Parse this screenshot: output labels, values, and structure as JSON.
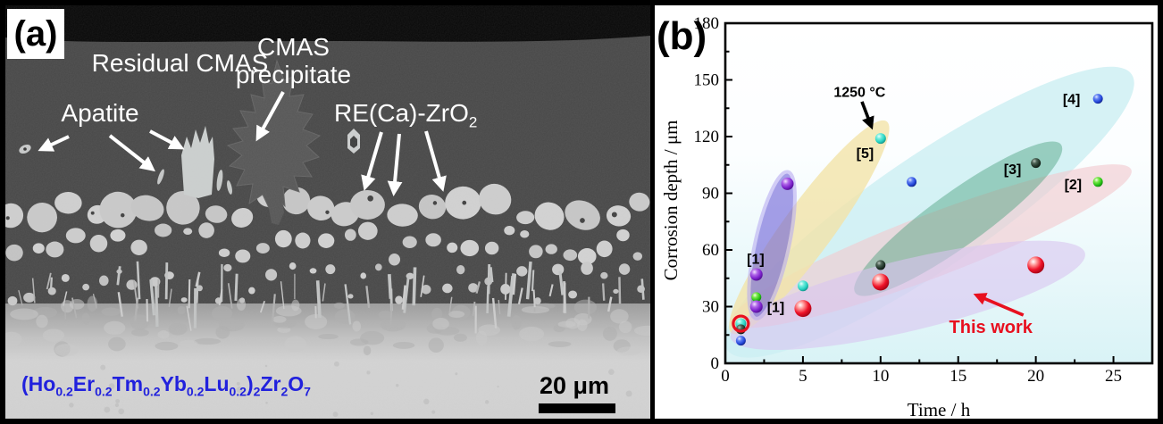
{
  "figure": {
    "panel_a_letter": "(a)",
    "panel_b_letter": "(b)"
  },
  "panel_a": {
    "labels": {
      "residual_cmas": "Residual CMAS",
      "apatite": "Apatite",
      "cmas_precipitate_line1": "CMAS",
      "cmas_precipitate_line2": "precipitate",
      "re_zro2_main": "RE(Ca)-ZrO",
      "re_zro2_sub": "2",
      "scale_bar_text": "20 μm"
    },
    "formula": {
      "segments": [
        {
          "t": "(Ho"
        },
        {
          "t": "0.2",
          "sub": true
        },
        {
          "t": "Er"
        },
        {
          "t": "0.2",
          "sub": true
        },
        {
          "t": "Tm"
        },
        {
          "t": "0.2",
          "sub": true
        },
        {
          "t": "Yb"
        },
        {
          "t": "0.2",
          "sub": true
        },
        {
          "t": "Lu"
        },
        {
          "t": "0.2",
          "sub": true
        },
        {
          "t": ")"
        },
        {
          "t": "2",
          "sub": true
        },
        {
          "t": "Zr"
        },
        {
          "t": "2",
          "sub": true
        },
        {
          "t": "O"
        },
        {
          "t": "7",
          "sub": true
        }
      ]
    }
  },
  "chart_data": {
    "type": "scatter",
    "xlabel": "Time / h",
    "ylabel": "Corrosion depth / μm",
    "xlim": [
      0,
      27.5
    ],
    "ylim": [
      0,
      180
    ],
    "xticks": [
      0,
      5,
      10,
      15,
      20,
      25
    ],
    "yticks": [
      0,
      30,
      60,
      90,
      120,
      150,
      180
    ],
    "x_minor_step": 2.5,
    "y_minor_step": 15,
    "series": [
      {
        "name": "[5]",
        "color": "#28d2c2",
        "gradient": "gradCyan",
        "r": 6,
        "points": [
          [
            1,
            21
          ],
          [
            5,
            41
          ],
          [
            10,
            119
          ]
        ]
      },
      {
        "name": "[4]",
        "color": "#2447da",
        "gradient": "gradBlue",
        "r": 5.5,
        "points": [
          [
            1,
            12
          ],
          [
            12,
            96
          ],
          [
            24,
            140
          ]
        ]
      },
      {
        "name": "[3]",
        "color": "#22362a",
        "gradient": "gradDark",
        "r": 5.5,
        "points": [
          [
            1,
            18
          ],
          [
            10,
            52
          ],
          [
            20,
            106
          ]
        ]
      },
      {
        "name": "[2]",
        "color": "#28c416",
        "gradient": "gradGreen",
        "r": 5.5,
        "points": [
          [
            2,
            35
          ],
          [
            24,
            96
          ]
        ]
      },
      {
        "name": "[1]",
        "color": "#7d22cc",
        "gradient": "gradPurple",
        "r": 7,
        "points": [
          [
            2,
            30
          ],
          [
            2,
            47
          ],
          [
            4,
            95
          ]
        ]
      },
      {
        "name": "This work",
        "color": "#e8101f",
        "gradient": "gradRed",
        "r": 9.5,
        "points": [
          [
            5,
            29
          ],
          [
            10,
            43
          ],
          [
            20,
            52
          ]
        ],
        "ring_point": [
          1,
          21
        ]
      }
    ],
    "region_ellipses": [
      {
        "ref": "[4]",
        "cx": 13.15,
        "cy": 80,
        "rx": 274,
        "ry": 63,
        "angle": -34.3,
        "fill": "#cceff3",
        "opacity": 0.8
      },
      {
        "ref": "[2]",
        "cx": 13.25,
        "cy": 62,
        "rx": 240,
        "ry": 35,
        "angle": -20.9,
        "fill": "#f2c9ce",
        "opacity": 0.62
      },
      {
        "ref": "[5]",
        "cx": 5.4,
        "cy": 72,
        "rx": 147,
        "ry": 28,
        "angle": -53.8,
        "fill": "#f3e4a9",
        "opacity": 0.8
      },
      {
        "ref": "[3]",
        "cx": 15,
        "cy": 76.5,
        "rx": 142,
        "ry": 30,
        "angle": -35.8,
        "fill": "#419a74",
        "opacity": 0.42
      },
      {
        "ref": "This work",
        "cx": 11.75,
        "cy": 36,
        "rx": 204,
        "ry": 40,
        "angle": -13.4,
        "fill": "#d9c5f0",
        "opacity": 0.6
      },
      {
        "ref": "[1]",
        "cx": 3.0,
        "cy": 62.5,
        "rx": 84,
        "ry": 19,
        "angle": -77.7,
        "fill": "#6e60d8",
        "opacity": 0.6,
        "stroke": "#b9adf2",
        "strokeWidth": 4
      }
    ],
    "annotations": [
      {
        "text": "[1]",
        "x": 1.95,
        "y": 55,
        "color": "#000000",
        "size": 16
      },
      {
        "text": "[1]",
        "x": 3.25,
        "y": 29.5,
        "color": "#000000",
        "size": 16
      },
      {
        "text": "[5]",
        "x": 9.0,
        "y": 111,
        "color": "#000000",
        "size": 16
      },
      {
        "text": "1250 °C",
        "x": 8.65,
        "y": 143.5,
        "color": "#000000",
        "size": 16
      },
      {
        "text": "[4]",
        "x": 22.3,
        "y": 139.5,
        "color": "#000000",
        "size": 16
      },
      {
        "text": "[3]",
        "x": 18.5,
        "y": 102.5,
        "color": "#000000",
        "size": 16
      },
      {
        "text": "[2]",
        "x": 22.4,
        "y": 94.5,
        "color": "#000000",
        "size": 16
      },
      {
        "text": "This work",
        "x": 17.1,
        "y": 18.5,
        "color": "#e8101f",
        "size": 20
      }
    ],
    "arrows": [
      {
        "from": [
          8.8,
          138.5
        ],
        "to": [
          9.4,
          125.5
        ],
        "color": "#000000"
      },
      {
        "from": [
          19.2,
          25.5
        ],
        "to": [
          16.2,
          36.0
        ],
        "color": "#e8101f"
      }
    ]
  }
}
